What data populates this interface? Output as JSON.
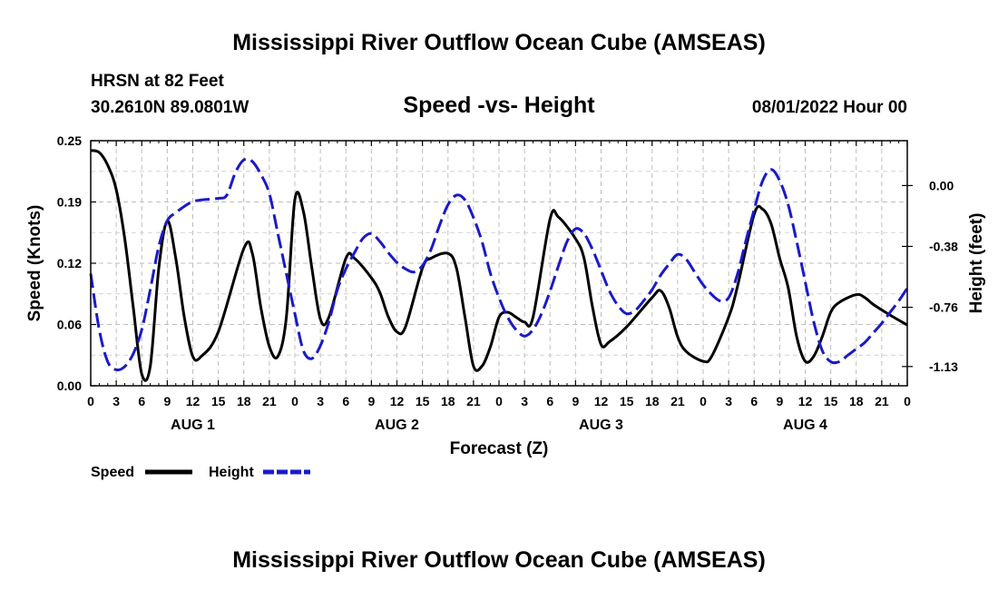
{
  "page": {
    "main_title": "Mississippi River Outflow Ocean Cube (AMSEAS)",
    "footer_title": "Mississippi River Outflow Ocean Cube (AMSEAS)",
    "station": "HRSN at 82 Feet",
    "coords": "30.2610N  89.0801W",
    "chart_title": "Speed -vs- Height",
    "date": "08/01/2022 Hour 00"
  },
  "chart_data": {
    "type": "line",
    "title": "Speed -vs- Height",
    "xlabel": "Forecast (Z)",
    "ylabel": "Speed (Knots)",
    "y2label": "Height (feet)",
    "xlim": [
      0,
      96
    ],
    "ylim": [
      0,
      0.25
    ],
    "y2lim": [
      -1.25,
      0.28
    ],
    "x_ticks": [
      0,
      3,
      6,
      9,
      12,
      15,
      18,
      21,
      24,
      27,
      30,
      33,
      36,
      39,
      42,
      45,
      48,
      51,
      54,
      57,
      60,
      63,
      66,
      69,
      72,
      75,
      78,
      81,
      84,
      87,
      90,
      93,
      96
    ],
    "x_tick_labels": [
      "0",
      "3",
      "6",
      "9",
      "12",
      "15",
      "18",
      "21",
      "0",
      "3",
      "6",
      "9",
      "12",
      "15",
      "18",
      "21",
      "0",
      "3",
      "6",
      "9",
      "12",
      "15",
      "18",
      "21",
      "0",
      "3",
      "6",
      "9",
      "12",
      "15",
      "18",
      "21",
      "0"
    ],
    "y_ticks": [
      0,
      0.0625,
      0.125,
      0.1875,
      0.25
    ],
    "y_tick_labels": [
      "0.00",
      "0.06",
      "0.12",
      "0.19",
      "0.25"
    ],
    "y2_ticks": [
      0.0,
      -0.38,
      -0.76,
      -1.13
    ],
    "y2_tick_labels": [
      "0.00",
      "-0.38",
      "-0.76",
      "-1.13"
    ],
    "day_labels": [
      {
        "label": "AUG 1",
        "x": 12
      },
      {
        "label": "AUG 2",
        "x": 36
      },
      {
        "label": "AUG 3",
        "x": 60
      },
      {
        "label": "AUG 4",
        "x": 84
      }
    ],
    "grid": true,
    "series": [
      {
        "name": "Speed",
        "axis": "left",
        "color": "#000000",
        "dash": "solid",
        "points": [
          [
            0,
            0.24
          ],
          [
            1,
            0.238
          ],
          [
            2,
            0.225
          ],
          [
            3,
            0.2
          ],
          [
            4,
            0.15
          ],
          [
            5,
            0.08
          ],
          [
            6,
            0.012
          ],
          [
            7,
            0.02
          ],
          [
            8,
            0.12
          ],
          [
            9,
            0.168
          ],
          [
            10,
            0.13
          ],
          [
            11,
            0.07
          ],
          [
            12,
            0.03
          ],
          [
            13,
            0.03
          ],
          [
            15,
            0.055
          ],
          [
            18,
            0.14
          ],
          [
            19,
            0.135
          ],
          [
            20,
            0.08
          ],
          [
            21,
            0.04
          ],
          [
            22,
            0.03
          ],
          [
            23,
            0.07
          ],
          [
            24,
            0.19
          ],
          [
            25,
            0.178
          ],
          [
            26,
            0.12
          ],
          [
            27,
            0.068
          ],
          [
            28,
            0.07
          ],
          [
            30,
            0.13
          ],
          [
            31,
            0.13
          ],
          [
            33,
            0.11
          ],
          [
            34,
            0.095
          ],
          [
            35,
            0.07
          ],
          [
            36,
            0.055
          ],
          [
            37,
            0.06
          ],
          [
            39,
            0.12
          ],
          [
            40,
            0.13
          ],
          [
            42,
            0.135
          ],
          [
            43,
            0.12
          ],
          [
            44,
            0.07
          ],
          [
            45,
            0.02
          ],
          [
            46,
            0.02
          ],
          [
            47,
            0.04
          ],
          [
            48,
            0.07
          ],
          [
            49,
            0.075
          ],
          [
            50,
            0.07
          ],
          [
            51,
            0.065
          ],
          [
            52,
            0.07
          ],
          [
            54,
            0.17
          ],
          [
            55,
            0.172
          ],
          [
            57,
            0.15
          ],
          [
            58,
            0.13
          ],
          [
            59,
            0.08
          ],
          [
            60,
            0.042
          ],
          [
            61,
            0.045
          ],
          [
            63,
            0.06
          ],
          [
            66,
            0.09
          ],
          [
            67,
            0.097
          ],
          [
            68,
            0.08
          ],
          [
            69,
            0.05
          ],
          [
            70,
            0.035
          ],
          [
            72,
            0.025
          ],
          [
            73,
            0.03
          ],
          [
            75,
            0.07
          ],
          [
            76,
            0.1
          ],
          [
            78,
            0.175
          ],
          [
            79,
            0.18
          ],
          [
            80,
            0.165
          ],
          [
            81,
            0.13
          ],
          [
            82,
            0.1
          ],
          [
            83,
            0.05
          ],
          [
            84,
            0.025
          ],
          [
            85,
            0.03
          ],
          [
            86,
            0.05
          ],
          [
            87,
            0.075
          ],
          [
            88,
            0.085
          ],
          [
            90,
            0.093
          ],
          [
            91,
            0.09
          ],
          [
            92,
            0.083
          ],
          [
            94,
            0.072
          ],
          [
            96,
            0.062
          ]
        ]
      },
      {
        "name": "Height",
        "axis": "right",
        "color": "#1a1ac8",
        "dash": "dashed",
        "points": [
          [
            0,
            -0.55
          ],
          [
            1,
            -0.9
          ],
          [
            2,
            -1.1
          ],
          [
            3,
            -1.15
          ],
          [
            4,
            -1.13
          ],
          [
            5,
            -1.05
          ],
          [
            6,
            -0.9
          ],
          [
            7,
            -0.65
          ],
          [
            8,
            -0.38
          ],
          [
            9,
            -0.22
          ],
          [
            10,
            -0.17
          ],
          [
            11,
            -0.13
          ],
          [
            12,
            -0.1
          ],
          [
            13,
            -0.09
          ],
          [
            15,
            -0.08
          ],
          [
            16,
            -0.06
          ],
          [
            17,
            0.08
          ],
          [
            18,
            0.16
          ],
          [
            19,
            0.15
          ],
          [
            20,
            0.07
          ],
          [
            21,
            -0.05
          ],
          [
            22,
            -0.3
          ],
          [
            23,
            -0.55
          ],
          [
            24,
            -0.8
          ],
          [
            25,
            -1.03
          ],
          [
            26,
            -1.08
          ],
          [
            27,
            -1.0
          ],
          [
            28,
            -0.85
          ],
          [
            29,
            -0.65
          ],
          [
            30,
            -0.52
          ],
          [
            31,
            -0.42
          ],
          [
            32,
            -0.33
          ],
          [
            33,
            -0.3
          ],
          [
            34,
            -0.35
          ],
          [
            35,
            -0.42
          ],
          [
            36,
            -0.48
          ],
          [
            37,
            -0.52
          ],
          [
            38,
            -0.54
          ],
          [
            39,
            -0.5
          ],
          [
            40,
            -0.4
          ],
          [
            41,
            -0.25
          ],
          [
            42,
            -0.12
          ],
          [
            43,
            -0.06
          ],
          [
            44,
            -0.09
          ],
          [
            45,
            -0.2
          ],
          [
            46,
            -0.35
          ],
          [
            47,
            -0.55
          ],
          [
            48,
            -0.7
          ],
          [
            49,
            -0.82
          ],
          [
            50,
            -0.9
          ],
          [
            51,
            -0.94
          ],
          [
            52,
            -0.9
          ],
          [
            53,
            -0.8
          ],
          [
            54,
            -0.66
          ],
          [
            55,
            -0.5
          ],
          [
            56,
            -0.35
          ],
          [
            57,
            -0.27
          ],
          [
            58,
            -0.3
          ],
          [
            59,
            -0.4
          ],
          [
            60,
            -0.53
          ],
          [
            61,
            -0.66
          ],
          [
            62,
            -0.75
          ],
          [
            63,
            -0.8
          ],
          [
            64,
            -0.78
          ],
          [
            65,
            -0.72
          ],
          [
            66,
            -0.65
          ],
          [
            67,
            -0.56
          ],
          [
            68,
            -0.49
          ],
          [
            69,
            -0.43
          ],
          [
            70,
            -0.46
          ],
          [
            71,
            -0.54
          ],
          [
            72,
            -0.62
          ],
          [
            73,
            -0.68
          ],
          [
            74,
            -0.72
          ],
          [
            75,
            -0.7
          ],
          [
            76,
            -0.56
          ],
          [
            77,
            -0.35
          ],
          [
            78,
            -0.15
          ],
          [
            79,
            0.03
          ],
          [
            80,
            0.1
          ],
          [
            81,
            0.03
          ],
          [
            82,
            -0.12
          ],
          [
            83,
            -0.35
          ],
          [
            84,
            -0.6
          ],
          [
            85,
            -0.85
          ],
          [
            86,
            -1.03
          ],
          [
            87,
            -1.1
          ],
          [
            88,
            -1.1
          ],
          [
            89,
            -1.06
          ],
          [
            90,
            -1.02
          ],
          [
            91,
            -0.98
          ],
          [
            92,
            -0.92
          ],
          [
            93,
            -0.86
          ],
          [
            94,
            -0.79
          ],
          [
            95,
            -0.72
          ],
          [
            96,
            -0.64
          ]
        ]
      }
    ],
    "legend": [
      {
        "label": "Speed",
        "color": "#000000",
        "dash": "solid"
      },
      {
        "label": "Height",
        "color": "#1a1ac8",
        "dash": "dashed"
      }
    ]
  }
}
